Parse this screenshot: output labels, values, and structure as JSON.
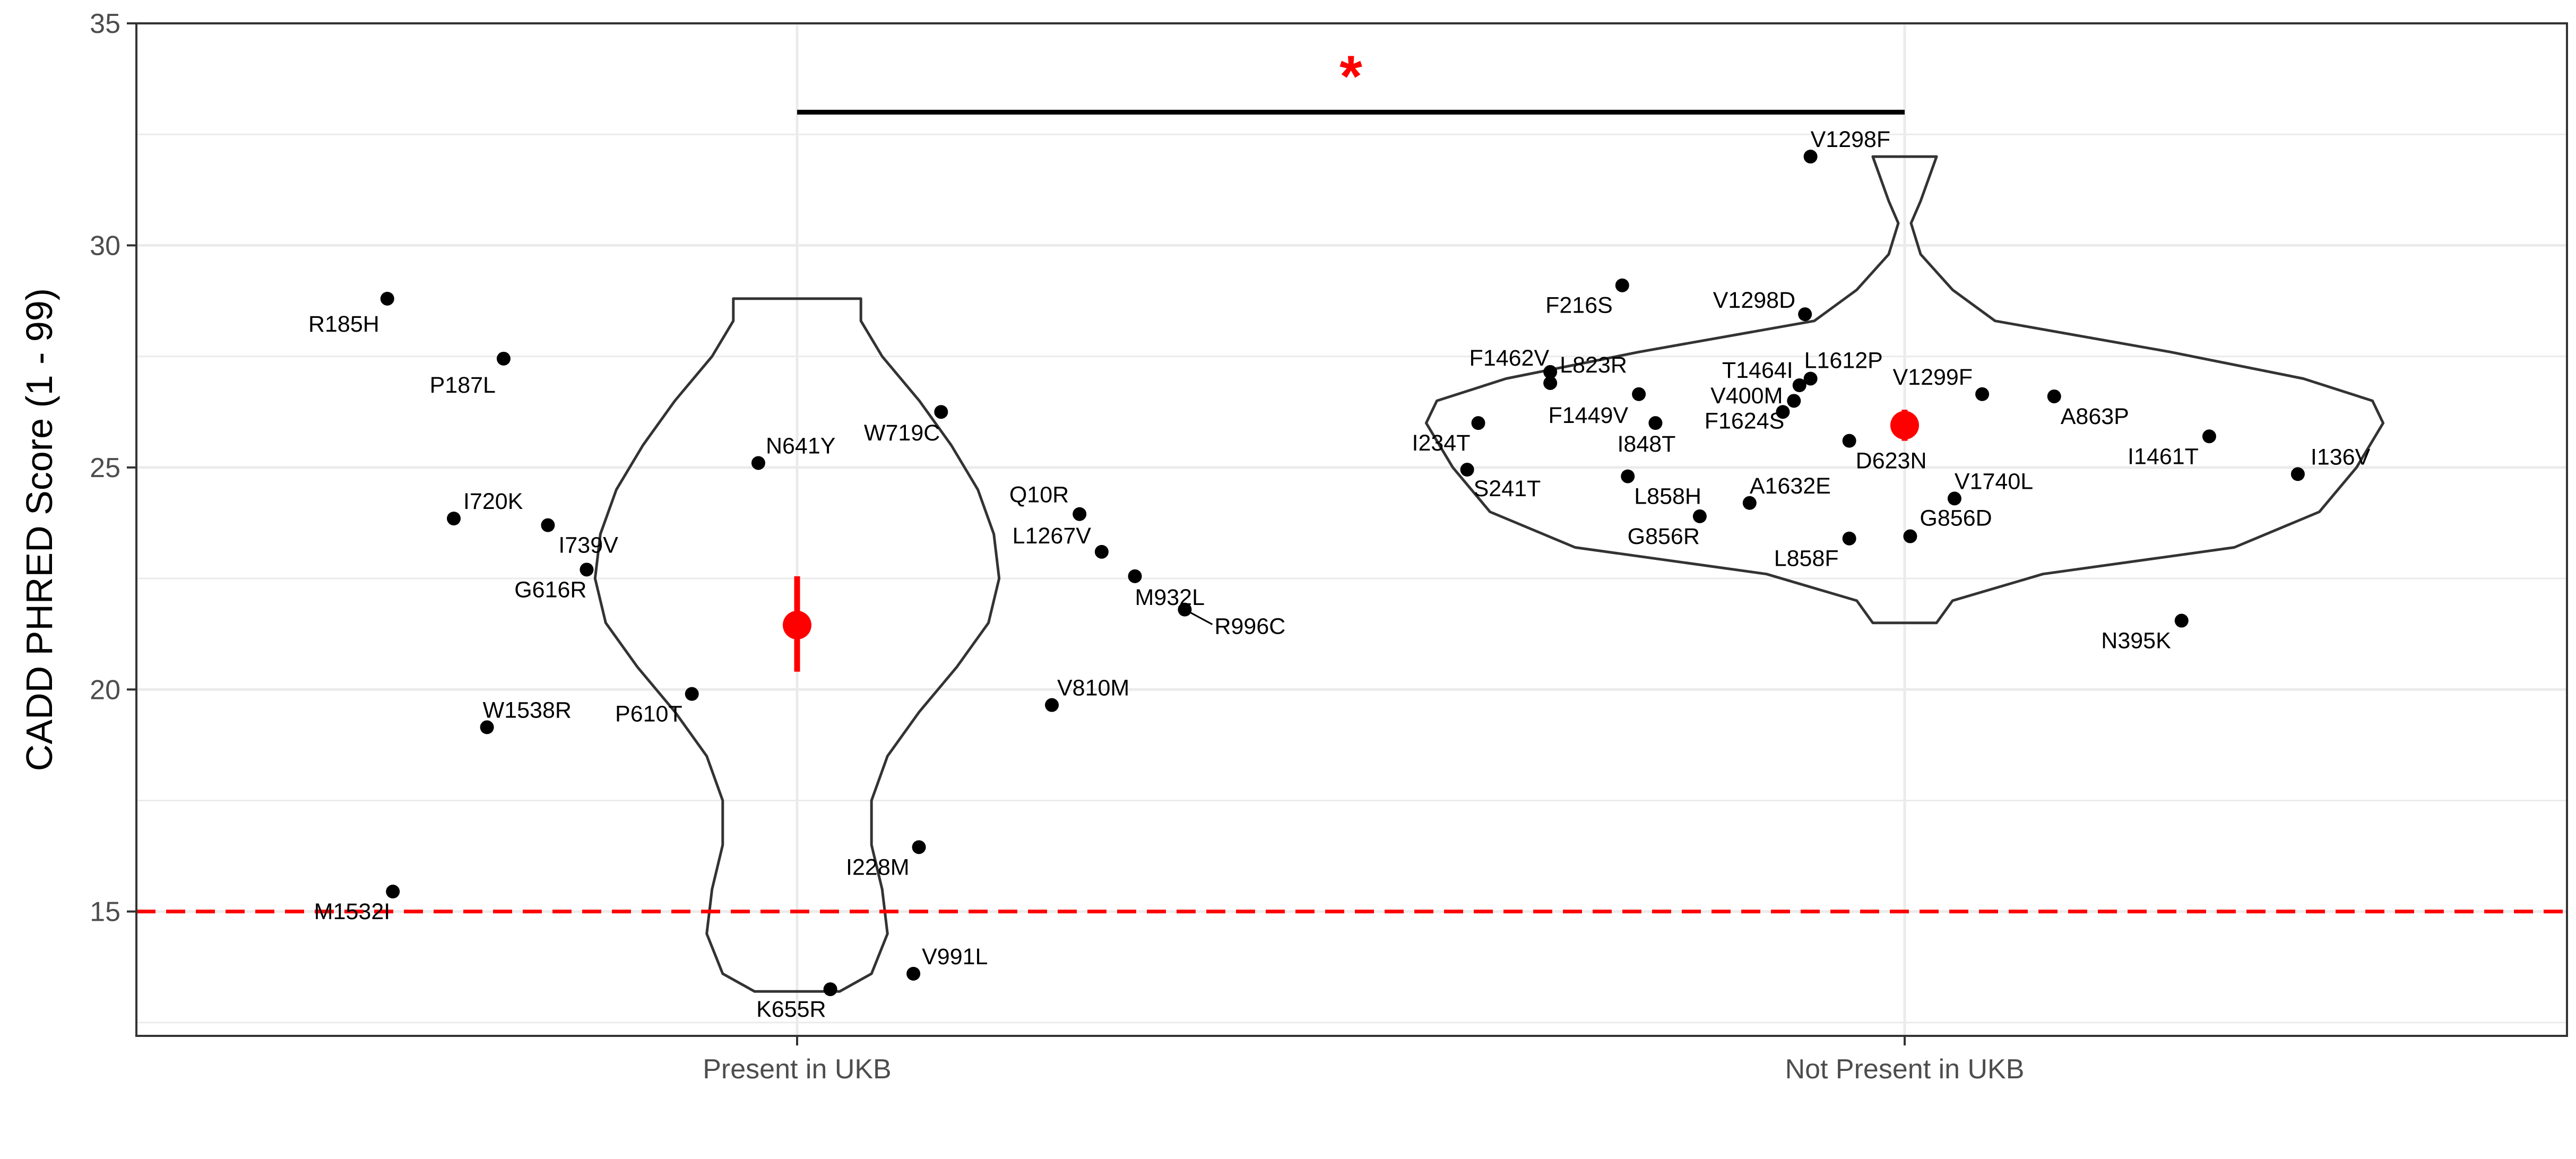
{
  "chart_data": {
    "type": "violin",
    "title": "",
    "xlabel": "",
    "ylabel": "CADD PHRED Score (1 - 99)",
    "ylim": [
      12.2,
      35
    ],
    "yticks": [
      15,
      20,
      25,
      30,
      35
    ],
    "y_minor_gridlines": [
      12.5,
      17.5,
      22.5,
      27.5,
      32.5
    ],
    "grid": true,
    "categories": [
      "Present in UKB",
      "Not Present in UKB"
    ],
    "threshold": {
      "value": 15,
      "color": "#ff0000",
      "style": "dashed"
    },
    "significance": {
      "from": "Present in UKB",
      "to": "Not Present in UKB",
      "y": 33,
      "label": "*",
      "color": "#ff0000"
    },
    "colors": {
      "points": "#000000",
      "summary": "#ff0000",
      "violin": "#333333",
      "threshold": "#ff0000"
    },
    "summary": [
      {
        "category": "Present in UKB",
        "mean": 21.45,
        "low": 20.4,
        "high": 22.55
      },
      {
        "category": "Not Present in UKB",
        "mean": 25.95,
        "low": 25.6,
        "high": 26.3
      }
    ],
    "violins": [
      {
        "category": "Present in UKB",
        "profile": [
          [
            13.2,
            0.08
          ],
          [
            13.6,
            0.14
          ],
          [
            14.5,
            0.17
          ],
          [
            15.5,
            0.16
          ],
          [
            16.5,
            0.14
          ],
          [
            17.5,
            0.14
          ],
          [
            18.5,
            0.17
          ],
          [
            19.5,
            0.23
          ],
          [
            20.5,
            0.3
          ],
          [
            21.5,
            0.36
          ],
          [
            22.5,
            0.38
          ],
          [
            23.5,
            0.37
          ],
          [
            24.5,
            0.34
          ],
          [
            25.5,
            0.29
          ],
          [
            26.5,
            0.23
          ],
          [
            27.5,
            0.16
          ],
          [
            28.3,
            0.12
          ],
          [
            28.8,
            0.12
          ]
        ]
      },
      {
        "category": "Not Present in UKB",
        "profile": [
          [
            21.5,
            0.06
          ],
          [
            22.0,
            0.09
          ],
          [
            22.6,
            0.26
          ],
          [
            23.2,
            0.62
          ],
          [
            24.0,
            0.78
          ],
          [
            25.0,
            0.85
          ],
          [
            26.0,
            0.9
          ],
          [
            26.5,
            0.88
          ],
          [
            27.0,
            0.75
          ],
          [
            27.6,
            0.5
          ],
          [
            28.3,
            0.17
          ],
          [
            29.0,
            0.09
          ],
          [
            29.8,
            0.03
          ],
          [
            30.5,
            0.012
          ],
          [
            31.0,
            0.03
          ],
          [
            31.5,
            0.045
          ],
          [
            32.0,
            0.06
          ]
        ]
      }
    ],
    "points": [
      {
        "label": "R185H",
        "group": "Present in UKB",
        "x_offset": -0.37,
        "y": 28.8
      },
      {
        "label": "P187L",
        "group": "Present in UKB",
        "x_offset": -0.265,
        "y": 27.45
      },
      {
        "label": "N641Y",
        "group": "Present in UKB",
        "x_offset": -0.035,
        "y": 25.1
      },
      {
        "label": "W719C",
        "group": "Present in UKB",
        "x_offset": 0.13,
        "y": 26.25
      },
      {
        "label": "I720K",
        "group": "Present in UKB",
        "x_offset": -0.31,
        "y": 23.85
      },
      {
        "label": "I739V",
        "group": "Present in UKB",
        "x_offset": -0.225,
        "y": 23.7
      },
      {
        "label": "G616R",
        "group": "Present in UKB",
        "x_offset": -0.19,
        "y": 22.7
      },
      {
        "label": "Q10R",
        "group": "Present in UKB",
        "x_offset": 0.255,
        "y": 23.95
      },
      {
        "label": "L1267V",
        "group": "Present in UKB",
        "x_offset": 0.275,
        "y": 23.1
      },
      {
        "label": "M932L",
        "group": "Present in UKB",
        "x_offset": 0.305,
        "y": 22.55
      },
      {
        "label": "R996C",
        "group": "Present in UKB",
        "x_offset": 0.35,
        "y": 21.8
      },
      {
        "label": "P610T",
        "group": "Present in UKB",
        "x_offset": -0.095,
        "y": 19.9
      },
      {
        "label": "W1538R",
        "group": "Present in UKB",
        "x_offset": -0.28,
        "y": 19.15
      },
      {
        "label": "V810M",
        "group": "Present in UKB",
        "x_offset": 0.23,
        "y": 19.65
      },
      {
        "label": "I228M",
        "group": "Present in UKB",
        "x_offset": 0.11,
        "y": 16.45
      },
      {
        "label": "M1532I",
        "group": "Present in UKB",
        "x_offset": -0.365,
        "y": 15.45
      },
      {
        "label": "V991L",
        "group": "Present in UKB",
        "x_offset": 0.105,
        "y": 13.6
      },
      {
        "label": "K655R",
        "group": "Present in UKB",
        "x_offset": 0.03,
        "y": 13.25
      },
      {
        "label": "V1298F",
        "group": "Not Present in UKB",
        "x_offset": -0.085,
        "y": 32.0
      },
      {
        "label": "F216S",
        "group": "Not Present in UKB",
        "x_offset": -0.255,
        "y": 29.1
      },
      {
        "label": "V1298D",
        "group": "Not Present in UKB",
        "x_offset": -0.09,
        "y": 28.45
      },
      {
        "label": "F1462V",
        "group": "Not Present in UKB",
        "x_offset": -0.32,
        "y": 27.15
      },
      {
        "label": "L823R",
        "group": "Not Present in UKB",
        "x_offset": -0.32,
        "y": 26.9
      },
      {
        "label": "F1449V",
        "group": "Not Present in UKB",
        "x_offset": -0.24,
        "y": 26.65
      },
      {
        "label": "L1612P",
        "group": "Not Present in UKB",
        "x_offset": -0.085,
        "y": 27.0
      },
      {
        "label": "T1464I",
        "group": "Not Present in UKB",
        "x_offset": -0.095,
        "y": 26.85
      },
      {
        "label": "V1299F",
        "group": "Not Present in UKB",
        "x_offset": 0.07,
        "y": 26.65
      },
      {
        "label": "A863P",
        "group": "Not Present in UKB",
        "x_offset": 0.135,
        "y": 26.6
      },
      {
        "label": "F1624S",
        "group": "Not Present in UKB",
        "x_offset": -0.1,
        "y": 26.5
      },
      {
        "label": "V400M",
        "group": "Not Present in UKB",
        "x_offset": -0.11,
        "y": 26.25
      },
      {
        "label": "I234T",
        "group": "Not Present in UKB",
        "x_offset": -0.385,
        "y": 26.0
      },
      {
        "label": "I848T",
        "group": "Not Present in UKB",
        "x_offset": -0.225,
        "y": 26.0
      },
      {
        "label": "D623N",
        "group": "Not Present in UKB",
        "x_offset": -0.05,
        "y": 25.6
      },
      {
        "label": "I1461T",
        "group": "Not Present in UKB",
        "x_offset": 0.275,
        "y": 25.7
      },
      {
        "label": "I136V",
        "group": "Not Present in UKB",
        "x_offset": 0.355,
        "y": 24.85
      },
      {
        "label": "S241T",
        "group": "Not Present in UKB",
        "x_offset": -0.395,
        "y": 24.95
      },
      {
        "label": "L858H",
        "group": "Not Present in UKB",
        "x_offset": -0.25,
        "y": 24.8
      },
      {
        "label": "V1740L",
        "group": "Not Present in UKB",
        "x_offset": 0.045,
        "y": 24.3
      },
      {
        "label": "A1632E",
        "group": "Not Present in UKB",
        "x_offset": -0.14,
        "y": 24.2
      },
      {
        "label": "G856R",
        "group": "Not Present in UKB",
        "x_offset": -0.185,
        "y": 23.9
      },
      {
        "label": "G856D",
        "group": "Not Present in UKB",
        "x_offset": 0.005,
        "y": 23.45
      },
      {
        "label": "L858F",
        "group": "Not Present in UKB",
        "x_offset": -0.05,
        "y": 23.4
      },
      {
        "label": "N395K",
        "group": "Not Present in UKB",
        "x_offset": 0.25,
        "y": 21.55
      }
    ]
  }
}
